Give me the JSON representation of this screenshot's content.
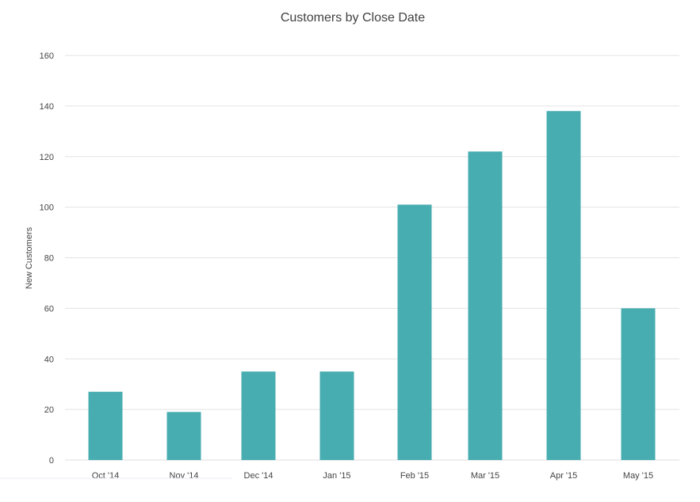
{
  "chart_data": {
    "type": "bar",
    "title": "Customers by Close Date",
    "xlabel": "",
    "ylabel": "New Customers",
    "categories": [
      "Oct '14",
      "Nov '14",
      "Dec '14",
      "Jan '15",
      "Feb '15",
      "Mar '15",
      "Apr '15",
      "May '15"
    ],
    "series": [
      {
        "values": [
          27,
          19,
          35,
          35,
          101,
          122,
          138,
          60
        ],
        "color": "#48adb1"
      }
    ],
    "ylim": [
      0,
      160
    ],
    "yticks": [
      "0",
      "20",
      "40",
      "60",
      "80",
      "100",
      "120",
      "140",
      "160"
    ],
    "grid": true,
    "legend": "none",
    "colors": {
      "bar": "#48adb1",
      "grid": "#e3e3e3",
      "text": "#444444",
      "title": "#404040",
      "axis": "#dcdcdc"
    }
  }
}
